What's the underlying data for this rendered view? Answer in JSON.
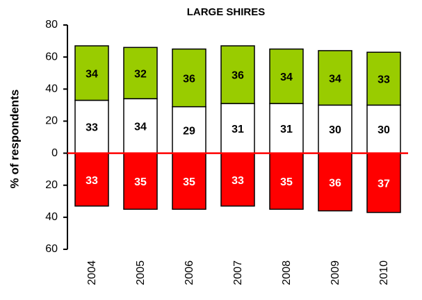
{
  "chart_data": {
    "type": "bar",
    "title": "LARGE SHIRES",
    "y_label": "% of respondents",
    "categories": [
      "2004",
      "2005",
      "2006",
      "2007",
      "2008",
      "2009",
      "2010"
    ],
    "series": [
      {
        "color": "#ffffff",
        "values": [
          33,
          34,
          29,
          31,
          31,
          30,
          30
        ]
      },
      {
        "color": "#99cc00",
        "values": [
          34,
          32,
          36,
          36,
          34,
          34,
          33
        ]
      },
      {
        "color": "#ff0000",
        "values": [
          -33,
          -35,
          -35,
          -33,
          -35,
          -36,
          -37
        ],
        "value_labels": [
          "33",
          "35",
          "35",
          "33",
          "35",
          "36",
          "37"
        ]
      }
    ],
    "ylim": [
      -60,
      80
    ],
    "yticks": [
      {
        "value": -60,
        "label": "60"
      },
      {
        "value": -40,
        "label": "40"
      },
      {
        "value": -20,
        "label": "20"
      },
      0,
      20,
      40,
      60,
      80
    ]
  }
}
